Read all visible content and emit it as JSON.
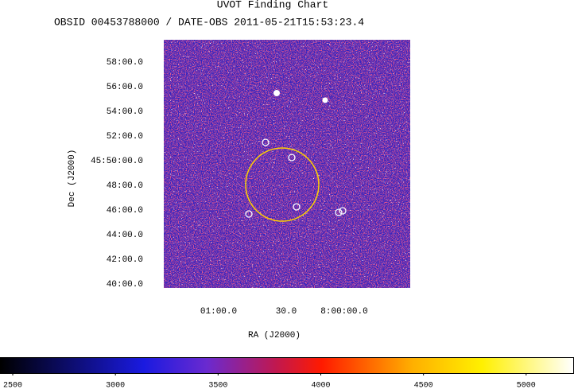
{
  "header": {
    "title": "UVOT Finding Chart",
    "subtitle": "OBSID 00453788000 / DATE-OBS 2011-05-21T15:53:23.4"
  },
  "image": {
    "dec_label": "Dec (J2000)",
    "ra_label": "RA (J2000)",
    "dec_ticks": [
      "58:00.0",
      "56:00.0",
      "54:00.0",
      "52:00.0",
      "45:50:00.0",
      "48:00.0",
      "46:00.0",
      "44:00.0",
      "42:00.0",
      "40:00.0"
    ],
    "ra_ticks": [
      "01:00.0",
      "30.0",
      "8:00:00.0"
    ]
  },
  "colorbar": {
    "lim": [
      2438,
      5233
    ],
    "ticks": [
      2500,
      3000,
      3500,
      4000,
      4500,
      5000
    ]
  }
}
